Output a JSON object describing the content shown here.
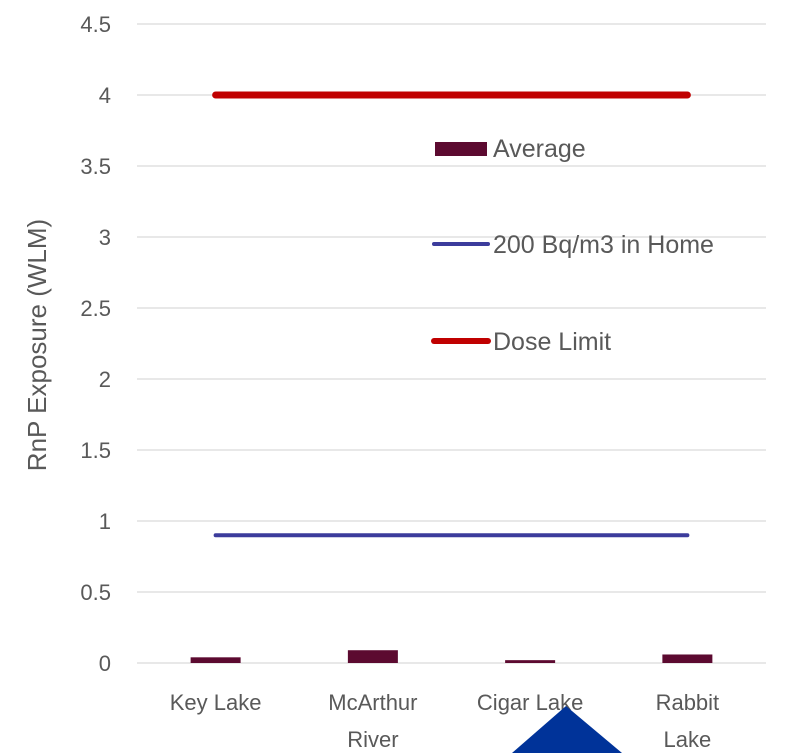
{
  "chart_data": {
    "type": "bar",
    "categories": [
      [
        "Key Lake"
      ],
      [
        "McArthur",
        "River"
      ],
      [
        "Cigar Lake"
      ],
      [
        "Rabbit",
        "Lake"
      ]
    ],
    "series": [
      {
        "name": "Average",
        "kind": "bar",
        "color": "#5c0a30",
        "values": [
          0.04,
          0.09,
          0.02,
          0.06
        ]
      },
      {
        "name": "200 Bq/m3 in Home",
        "kind": "line",
        "color": "#3c3c9c",
        "values": [
          0.9,
          0.9,
          0.9,
          0.9
        ]
      },
      {
        "name": "Dose Limit",
        "kind": "line",
        "color": "#c00000",
        "values": [
          4,
          4,
          4,
          4
        ]
      }
    ],
    "ylabel": "RnP Exposure (WLM)",
    "ylim": [
      0,
      4.5
    ],
    "yticks": [
      "0",
      "0.5",
      "1",
      "1.5",
      "2",
      "2.5",
      "3",
      "3.5",
      "4",
      "4.5"
    ],
    "grid": true,
    "legend_position": "right, inside plot",
    "overlay_shape_color": "#003399"
  }
}
